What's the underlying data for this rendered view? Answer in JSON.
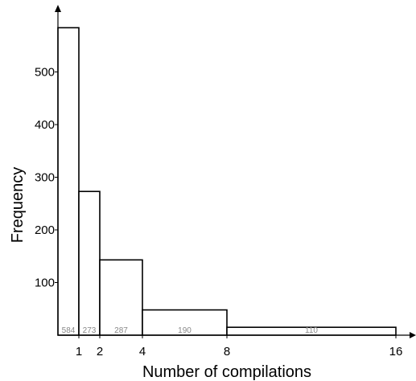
{
  "chart_data": {
    "type": "bar",
    "title": "",
    "xlabel": "Number of compilations",
    "ylabel": "Frequency",
    "ylim": [
      0,
      600
    ],
    "grid": false,
    "x_ticks": [
      1,
      2,
      4,
      8,
      16
    ],
    "y_ticks": [
      100,
      200,
      300,
      400,
      500
    ],
    "bins": [
      {
        "from": 0,
        "to": 1,
        "height": 584,
        "label": "584"
      },
      {
        "from": 1,
        "to": 2,
        "height": 273,
        "label": "273"
      },
      {
        "from": 2,
        "to": 4,
        "height": 287,
        "label": "287"
      },
      {
        "from": 4,
        "to": 8,
        "height": 190,
        "label": "190"
      },
      {
        "from": 8,
        "to": 16,
        "height": 110,
        "label": "110"
      }
    ],
    "bar_values": [
      584,
      273,
      143,
      48,
      15
    ]
  }
}
